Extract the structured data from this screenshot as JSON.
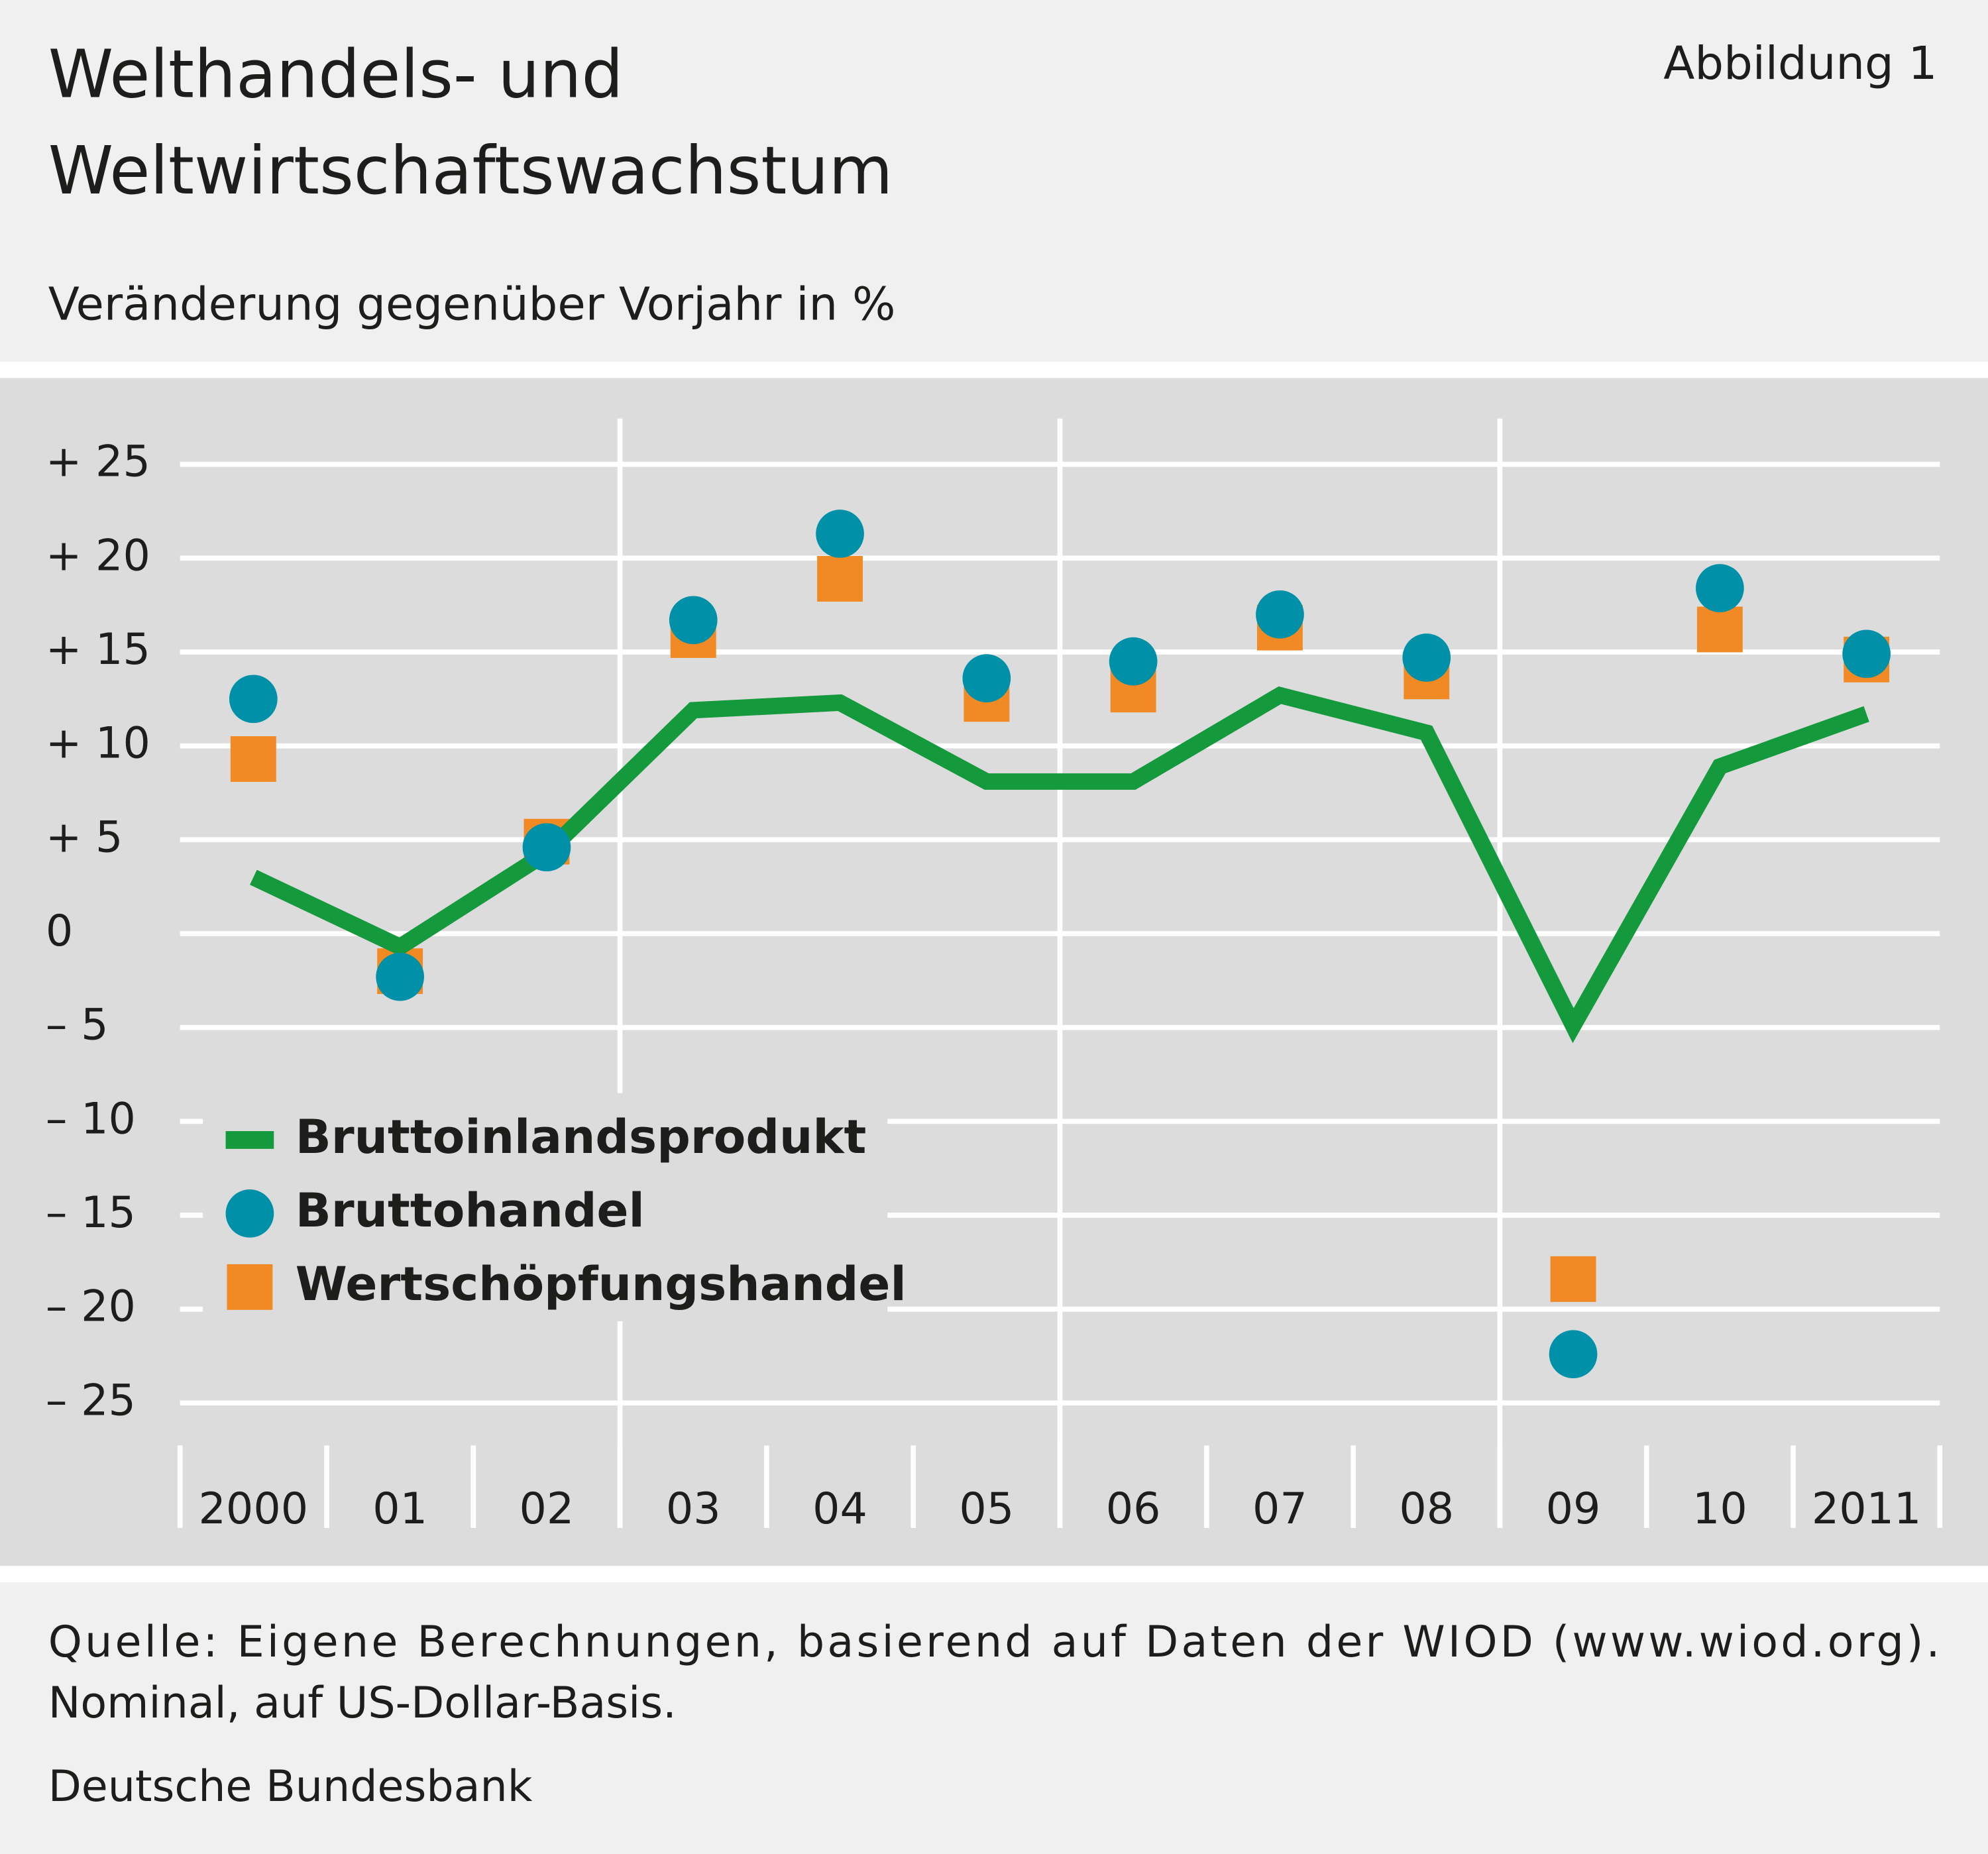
{
  "chart_data": {
    "type": "line",
    "title": [
      "Welthandels- und",
      "Weltwirtschaftswachstum"
    ],
    "figure_label": "Abbildung 1",
    "subtitle": "Veränderung gegenüber Vorjahr in %",
    "categories": [
      "2000",
      "01",
      "02",
      "03",
      "04",
      "05",
      "06",
      "07",
      "08",
      "09",
      "10",
      "2011"
    ],
    "series": [
      {
        "name": "Bruttoinlandsprodukt",
        "type": "line",
        "color": "#149a3c",
        "values": [
          3.0,
          -0.7,
          4.3,
          11.9,
          12.3,
          8.1,
          8.1,
          12.7,
          10.7,
          -4.9,
          8.9,
          11.7
        ]
      },
      {
        "name": "Bruttohandel",
        "type": "scatter",
        "marker": "circle",
        "color": "#0091a9",
        "values": [
          12.5,
          -2.3,
          4.6,
          16.7,
          21.3,
          13.6,
          14.5,
          17.0,
          14.7,
          -22.4,
          18.4,
          14.9
        ]
      },
      {
        "name": "Wertschöpfungshandel",
        "type": "scatter",
        "marker": "square",
        "color": "#f18a25",
        "values": [
          9.3,
          -2.0,
          4.9,
          15.9,
          18.9,
          12.5,
          13.0,
          16.3,
          13.7,
          -18.4,
          16.2,
          14.6
        ]
      }
    ],
    "ylim": [
      -27.4,
      25
    ],
    "yticks": [
      {
        "value": 25,
        "label": "+ 25"
      },
      {
        "value": 20,
        "label": "+ 20"
      },
      {
        "value": 15,
        "label": "+ 15"
      },
      {
        "value": 10,
        "label": "+ 10"
      },
      {
        "value": 5,
        "label": "+  5"
      },
      0,
      {
        "value": -5,
        "label": "–  5"
      },
      {
        "value": -10,
        "label": "– 10"
      },
      {
        "value": -15,
        "label": "– 15"
      },
      {
        "value": -20,
        "label": "– 20"
      },
      {
        "value": -25,
        "label": "– 25"
      }
    ],
    "grid": true,
    "legend": "lower-left",
    "source": [
      "Quelle: Eigene Berechnungen, basierend auf Daten der WIOD (www.wiod.org).",
      "Nominal, auf US-Dollar-Basis."
    ],
    "publisher": "Deutsche Bundesbank"
  }
}
